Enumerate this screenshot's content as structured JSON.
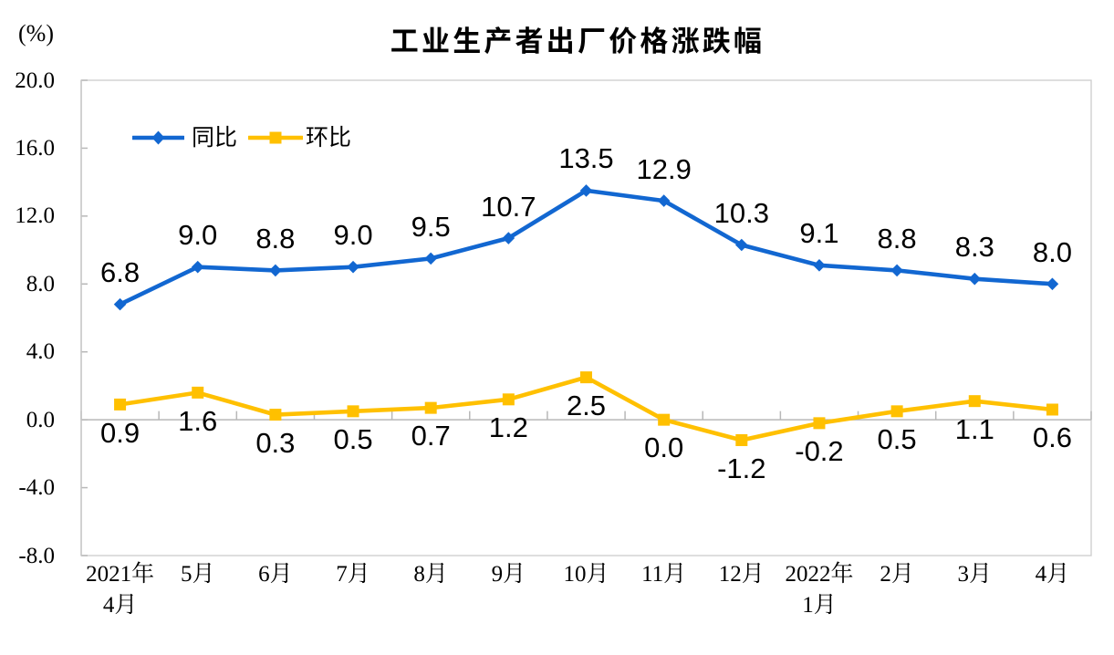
{
  "page": {
    "background": "#FFFFFF",
    "title": "工业生产者出厂价格涨跌幅",
    "unit_label": "(%)"
  },
  "legend": {
    "series1_label": "同比",
    "series2_label": "环比"
  },
  "chart_data": {
    "type": "line",
    "title": "工业生产者出厂价格涨跌幅",
    "ylabel": "(%)",
    "ylim": [
      -8.0,
      20.0
    ],
    "ytick_step": 4.0,
    "ytick_labels": [
      "20.0",
      "16.0",
      "12.0",
      "8.0",
      "4.0",
      "0.0",
      "-4.0",
      "-8.0"
    ],
    "grid": false,
    "legend_position": "top-left-inside",
    "categories": [
      "2021年\n4月",
      "5月",
      "6月",
      "7月",
      "8月",
      "9月",
      "10月",
      "11月",
      "12月",
      "2022年\n1月",
      "2月",
      "3月",
      "4月"
    ],
    "series": [
      {
        "name": "同比",
        "color": "#1267D1",
        "marker": "diamond",
        "label_position": "above",
        "values": [
          6.8,
          9.0,
          8.8,
          9.0,
          9.5,
          10.7,
          13.5,
          12.9,
          10.3,
          9.1,
          8.8,
          8.3,
          8.0
        ]
      },
      {
        "name": "环比",
        "color": "#FFC000",
        "marker": "square",
        "label_position": "below",
        "values": [
          0.9,
          1.6,
          0.3,
          0.5,
          0.7,
          1.2,
          2.5,
          0.0,
          -1.2,
          -0.2,
          0.5,
          1.1,
          0.6
        ]
      }
    ]
  }
}
